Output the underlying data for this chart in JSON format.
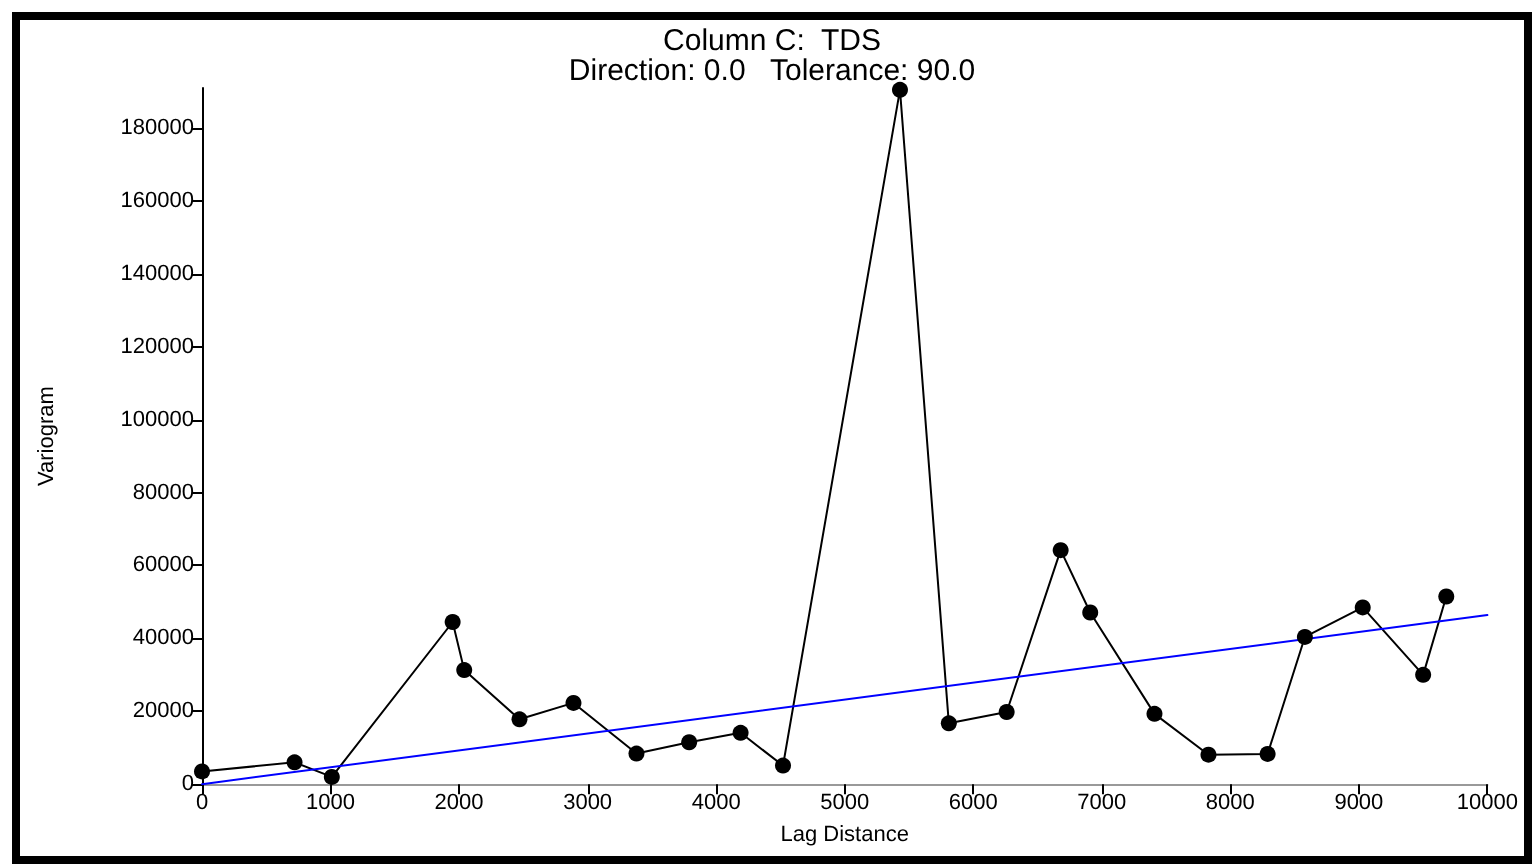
{
  "chart_data": {
    "type": "line",
    "title": "Column C:  TDS",
    "subtitle": "Direction: 0.0   Tolerance: 90.0",
    "xlabel": "Lag Distance",
    "ylabel": "Variogram",
    "series": [
      {
        "color": "#000000",
        "marker": "circle",
        "x": [
          0,
          720,
          1010,
          1950,
          2040,
          2470,
          2890,
          3380,
          3790,
          4190,
          4520,
          5430,
          5810,
          6260,
          6680,
          6910,
          7410,
          7830,
          8290,
          8580,
          9030,
          9500,
          9680
        ],
        "values": [
          3500,
          6000,
          2000,
          44500,
          31300,
          17800,
          22300,
          8400,
          11500,
          14100,
          5100,
          190500,
          16700,
          19800,
          64200,
          47100,
          19300,
          8100,
          8300,
          40400,
          48500,
          30000,
          51500
        ]
      },
      {
        "color": "#0000ff",
        "marker": "none",
        "x": [
          0,
          10000
        ],
        "values": [
          0,
          46400
        ]
      }
    ],
    "xlim": [
      0,
      10000
    ],
    "xticks": [
      0,
      1000,
      2000,
      3000,
      4000,
      5000,
      6000,
      7000,
      8000,
      9000,
      10000
    ],
    "ylim": [
      0,
      191000
    ],
    "yticks": [
      0,
      20000,
      40000,
      60000,
      80000,
      100000,
      120000,
      140000,
      160000,
      180000
    ],
    "line_style": "solid"
  }
}
